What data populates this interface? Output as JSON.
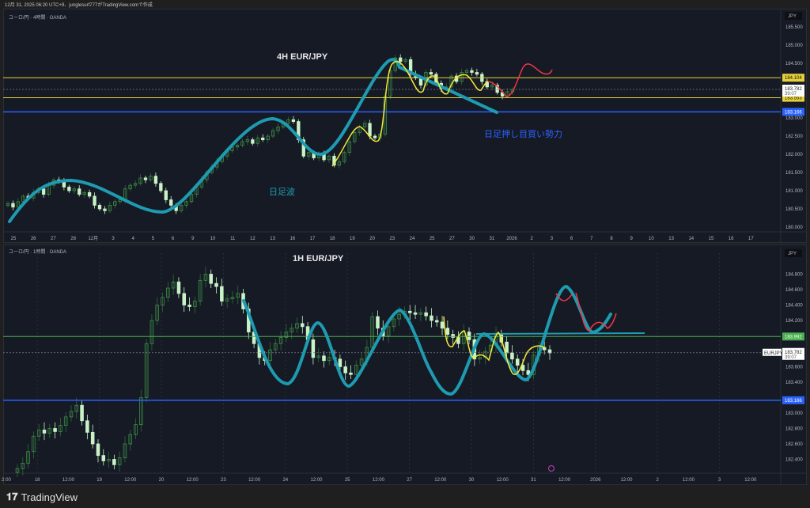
{
  "header": {
    "caption": "12月 31, 2025 06:20 UTC+9、junglesurf777がTradingView.comで作成"
  },
  "footer": {
    "brand": "TradingView",
    "logo_icon": "tradingview-logo-icon"
  },
  "colors": {
    "background": "#161a25",
    "candle_light": "#c9f2c7",
    "candle_dark": "#2e6b35",
    "yellow_level": "#e6d13a",
    "blue_level": "#2962ff",
    "green_level": "#4caf50",
    "wave_teal": "#1e9bb0",
    "yellow_wave": "#f5e935",
    "red_projection": "#f23645"
  },
  "chart_data": [
    {
      "type": "candlestick",
      "symbol_line": "ユーロ/円 · 4時間 · OANDA",
      "title": "4H EUR/JPY",
      "currency": "JPY",
      "annotations": [
        "日足波",
        "日足押し目買い勢力"
      ],
      "ylim": [
        180.0,
        185.5
      ],
      "y_ticks": [
        "185.500",
        "185.000",
        "184.500",
        "183.000",
        "182.500",
        "182.000",
        "181.500",
        "181.000",
        "180.500",
        "180.000"
      ],
      "x_ticks": [
        "25",
        "26",
        "27",
        "28",
        "12月",
        "3",
        "4",
        "5",
        "6",
        "9",
        "10",
        "11",
        "12",
        "13",
        "16",
        "17",
        "18",
        "19",
        "20",
        "23",
        "24",
        "25",
        "27",
        "30",
        "31",
        "2026",
        "2",
        "3",
        "6",
        "7",
        "8",
        "9",
        "10",
        "13",
        "14",
        "15",
        "16",
        "17"
      ],
      "levels": [
        {
          "price": "184.104",
          "value": 184.104,
          "color": "yellow"
        },
        {
          "price": "183.553",
          "value": 183.553,
          "color": "yellow"
        },
        {
          "price": "183.166",
          "value": 183.166,
          "color": "blue"
        }
      ],
      "last_price": {
        "price": "183.782",
        "value": 183.782,
        "countdown": "39:07"
      },
      "closes": [
        180.65,
        180.55,
        180.7,
        180.85,
        180.8,
        180.95,
        181.05,
        180.9,
        181.15,
        181.3,
        181.25,
        181.1,
        181.0,
        181.05,
        180.9,
        180.95,
        180.85,
        180.6,
        180.5,
        180.45,
        180.6,
        180.7,
        180.75,
        181.05,
        181.15,
        181.2,
        181.35,
        181.3,
        181.4,
        181.2,
        181.0,
        180.75,
        180.6,
        180.45,
        180.6,
        180.7,
        180.9,
        181.1,
        181.3,
        181.5,
        181.65,
        181.8,
        181.95,
        182.1,
        182.2,
        182.25,
        182.35,
        182.4,
        182.3,
        182.45,
        182.4,
        182.5,
        182.65,
        182.75,
        182.85,
        182.95,
        182.9,
        182.4,
        181.95,
        182.05,
        181.9,
        182.0,
        181.85,
        181.95,
        181.7,
        181.8,
        182.05,
        182.35,
        182.6,
        182.75,
        182.85,
        182.5,
        182.45,
        182.55,
        183.6,
        184.3,
        184.65,
        184.55,
        184.6,
        184.2,
        184.1,
        183.9,
        184.25,
        184.2,
        183.95,
        183.8,
        183.85,
        184.15,
        184.0,
        184.25,
        184.3,
        184.25,
        184.2,
        184.0,
        183.85,
        183.9,
        183.7,
        183.6,
        183.72,
        183.78
      ]
    },
    {
      "type": "candlestick",
      "symbol_line": "ユーロ/円 · 1時間 · OANDA",
      "title": "1H EUR/JPY",
      "currency": "JPY",
      "ylim": [
        182.3,
        185.0
      ],
      "y_ticks": [
        "184.800",
        "184.600",
        "184.400",
        "184.200",
        "183.600",
        "183.400",
        "183.000",
        "182.800",
        "182.600",
        "182.400"
      ],
      "x_ticks": [
        "2:00",
        "18",
        "12:00",
        "19",
        "12:00",
        "20",
        "12:00",
        "23",
        "12:00",
        "24",
        "12:00",
        "25",
        "12:00",
        "27",
        "12:00",
        "30",
        "12:00",
        "31",
        "12:00",
        "2026",
        "12:00",
        "2",
        "12:00",
        "3",
        "12:00"
      ],
      "levels": [
        {
          "price": "183.992",
          "value": 183.992,
          "color": "green"
        },
        {
          "price": "183.166",
          "value": 183.166,
          "color": "blue"
        }
      ],
      "last_price": {
        "symbol": "EURJPY",
        "price": "183.782",
        "value": 183.782,
        "countdown": "39:07"
      },
      "closes": [
        182.28,
        182.35,
        182.5,
        182.7,
        182.78,
        182.74,
        182.8,
        182.76,
        182.84,
        182.95,
        183.02,
        183.1,
        182.9,
        182.75,
        182.6,
        182.45,
        182.38,
        182.4,
        182.33,
        182.42,
        182.6,
        182.72,
        182.85,
        183.2,
        183.9,
        184.2,
        184.4,
        184.5,
        184.62,
        184.7,
        184.55,
        184.4,
        184.38,
        184.45,
        184.72,
        184.8,
        184.68,
        184.64,
        184.45,
        184.48,
        184.5,
        184.55,
        184.35,
        184.05,
        183.9,
        183.72,
        183.68,
        183.82,
        183.9,
        183.98,
        184.05,
        184.1,
        184.16,
        184.12,
        183.95,
        183.72,
        183.74,
        183.68,
        183.72,
        183.7,
        183.6,
        183.52,
        183.5,
        183.62,
        183.7,
        183.85,
        184.25,
        184.1,
        184.0,
        184.12,
        184.22,
        184.28,
        184.32,
        184.3,
        184.28,
        184.3,
        184.26,
        184.2,
        184.18,
        184.1,
        184.02,
        183.98,
        183.9,
        184.05,
        183.95,
        183.7,
        183.72,
        183.8,
        183.88,
        184.02,
        183.92,
        183.78,
        183.7,
        183.62,
        183.55,
        183.5,
        183.75,
        183.85,
        183.82,
        183.78
      ]
    }
  ]
}
